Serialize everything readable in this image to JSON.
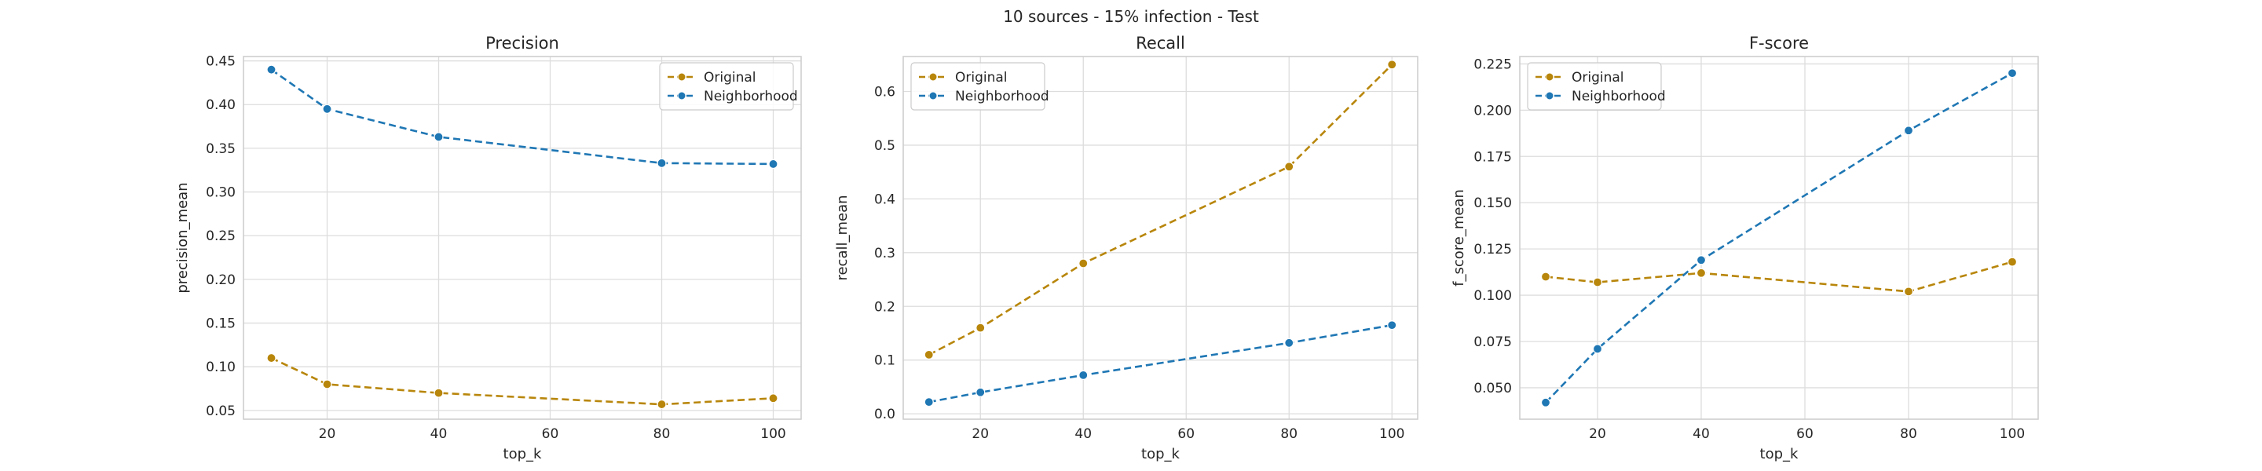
{
  "figure": {
    "suptitle": "10 sources - 15% infection - Test"
  },
  "colors": {
    "Original": "#b8860b",
    "Neighborhood": "#1f77b4",
    "grid": "#dddddd",
    "frame": "#cccccc"
  },
  "chart_data": [
    {
      "type": "line",
      "title": "Precision",
      "xlabel": "top_k",
      "ylabel": "precision_mean",
      "x": [
        10,
        20,
        40,
        80,
        100
      ],
      "xlim": [
        5,
        105
      ],
      "ylim": [
        0.04,
        0.455
      ],
      "xticks": [
        20,
        40,
        60,
        80,
        100
      ],
      "yticks": [
        0.05,
        0.1,
        0.15,
        0.2,
        0.25,
        0.3,
        0.35,
        0.4,
        0.45
      ],
      "ytick_labels": [
        "0.05",
        "0.10",
        "0.15",
        "0.20",
        "0.25",
        "0.30",
        "0.35",
        "0.40",
        "0.45"
      ],
      "legend": "top-right",
      "grid": true,
      "series": [
        {
          "name": "Original",
          "values": [
            0.11,
            0.08,
            0.07,
            0.057,
            0.064
          ]
        },
        {
          "name": "Neighborhood",
          "values": [
            0.44,
            0.395,
            0.363,
            0.333,
            0.332
          ]
        }
      ]
    },
    {
      "type": "line",
      "title": "Recall",
      "xlabel": "top_k",
      "ylabel": "recall_mean",
      "x": [
        10,
        20,
        40,
        80,
        100
      ],
      "xlim": [
        5,
        105
      ],
      "ylim": [
        -0.01,
        0.665
      ],
      "xticks": [
        20,
        40,
        60,
        80,
        100
      ],
      "yticks": [
        0.0,
        0.1,
        0.2,
        0.3,
        0.4,
        0.5,
        0.6
      ],
      "ytick_labels": [
        "0.0",
        "0.1",
        "0.2",
        "0.3",
        "0.4",
        "0.5",
        "0.6"
      ],
      "legend": "top-left",
      "grid": true,
      "series": [
        {
          "name": "Original",
          "values": [
            0.11,
            0.16,
            0.28,
            0.46,
            0.65
          ]
        },
        {
          "name": "Neighborhood",
          "values": [
            0.022,
            0.04,
            0.072,
            0.132,
            0.165
          ]
        }
      ]
    },
    {
      "type": "line",
      "title": "F-score",
      "xlabel": "top_k",
      "ylabel": "f_score_mean",
      "x": [
        10,
        20,
        40,
        80,
        100
      ],
      "xlim": [
        5,
        105
      ],
      "ylim": [
        0.033,
        0.229
      ],
      "xticks": [
        20,
        40,
        60,
        80,
        100
      ],
      "yticks": [
        0.05,
        0.075,
        0.1,
        0.125,
        0.15,
        0.175,
        0.2,
        0.225
      ],
      "ytick_labels": [
        "0.050",
        "0.075",
        "0.100",
        "0.125",
        "0.150",
        "0.175",
        "0.200",
        "0.225"
      ],
      "legend": "top-left",
      "grid": true,
      "series": [
        {
          "name": "Original",
          "values": [
            0.11,
            0.107,
            0.112,
            0.102,
            0.118
          ]
        },
        {
          "name": "Neighborhood",
          "values": [
            0.042,
            0.071,
            0.119,
            0.189,
            0.22
          ]
        }
      ]
    }
  ]
}
